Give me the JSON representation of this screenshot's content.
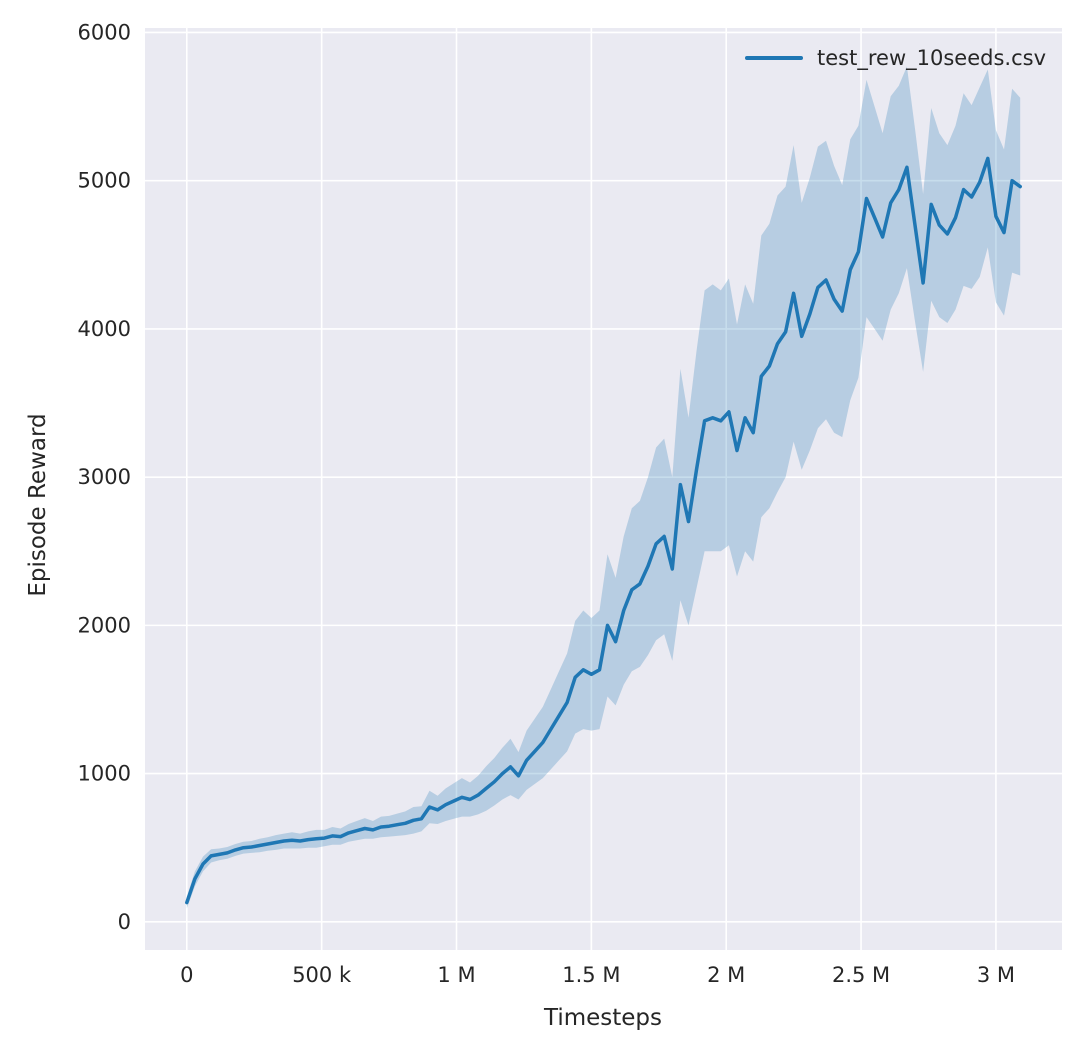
{
  "chart_data": {
    "type": "line",
    "title": "",
    "xlabel": "Timesteps",
    "ylabel": "Episode Reward",
    "legend": [
      "test_rew_10seeds.csv"
    ],
    "legend_position": "upper right",
    "grid": true,
    "x_start": 0,
    "x_step": 30000,
    "xlim": [
      -155000,
      3245000
    ],
    "ylim": [
      -190,
      6030
    ],
    "x_tick_values": [
      0,
      500000,
      1000000,
      1500000,
      2000000,
      2500000,
      3000000
    ],
    "x_tick_labels": [
      "0",
      "500 k",
      "1 M",
      "1.5 M",
      "2 M",
      "2.5 M",
      "3 M"
    ],
    "y_tick_values": [
      0,
      1000,
      2000,
      3000,
      4000,
      5000,
      6000
    ],
    "y_tick_labels": [
      "0",
      "1000",
      "2000",
      "3000",
      "4000",
      "5000",
      "6000"
    ],
    "series": [
      {
        "name": "test_rew_10seeds.csv",
        "color": "#1f77b4",
        "values": [
          130,
          290,
          390,
          445,
          455,
          465,
          485,
          500,
          505,
          515,
          525,
          535,
          545,
          550,
          545,
          555,
          560,
          565,
          580,
          575,
          600,
          615,
          630,
          620,
          640,
          645,
          655,
          665,
          685,
          695,
          775,
          755,
          790,
          815,
          840,
          825,
          855,
          900,
          945,
          1000,
          1045,
          985,
          1090,
          1150,
          1210,
          1300,
          1390,
          1480,
          1650,
          1700,
          1670,
          1700,
          2000,
          1890,
          2100,
          2240,
          2280,
          2400,
          2550,
          2600,
          2380,
          2950,
          2700,
          3050,
          3380,
          3400,
          3380,
          3440,
          3180,
          3400,
          3300,
          3680,
          3750,
          3900,
          3980,
          4240,
          3950,
          4100,
          4280,
          4330,
          4200,
          4120,
          4400,
          4520,
          4880,
          4750,
          4620,
          4850,
          4940,
          5090,
          4700,
          4310,
          4840,
          4700,
          4640,
          4750,
          4940,
          4890,
          4990,
          5150,
          4760,
          4650,
          5000,
          4960
        ],
        "spread": [
          40,
          50,
          50,
          45,
          40,
          40,
          40,
          40,
          40,
          45,
          45,
          50,
          50,
          55,
          50,
          55,
          60,
          55,
          60,
          55,
          60,
          65,
          70,
          60,
          70,
          70,
          75,
          80,
          90,
          85,
          110,
          95,
          110,
          120,
          130,
          115,
          130,
          150,
          160,
          175,
          190,
          160,
          200,
          220,
          240,
          270,
          300,
          330,
          380,
          400,
          380,
          400,
          480,
          430,
          500,
          550,
          560,
          600,
          650,
          660,
          620,
          780,
          700,
          800,
          880,
          900,
          880,
          900,
          850,
          900,
          870,
          950,
          960,
          1000,
          980,
          1000,
          900,
          920,
          950,
          940,
          900,
          850,
          880,
          850,
          800,
          750,
          700,
          720,
          700,
          680,
          650,
          600,
          650,
          620,
          600,
          620,
          650,
          620,
          640,
          600,
          580,
          560,
          620,
          600
        ]
      }
    ],
    "colors": {
      "figure_background": "#ffffff",
      "plot_background": "#eaeaf2",
      "grid": "#ffffff",
      "line": "#1f77b4",
      "band_fill": "#1f77b4",
      "band_opacity": 0.25,
      "text": "#262626"
    }
  }
}
